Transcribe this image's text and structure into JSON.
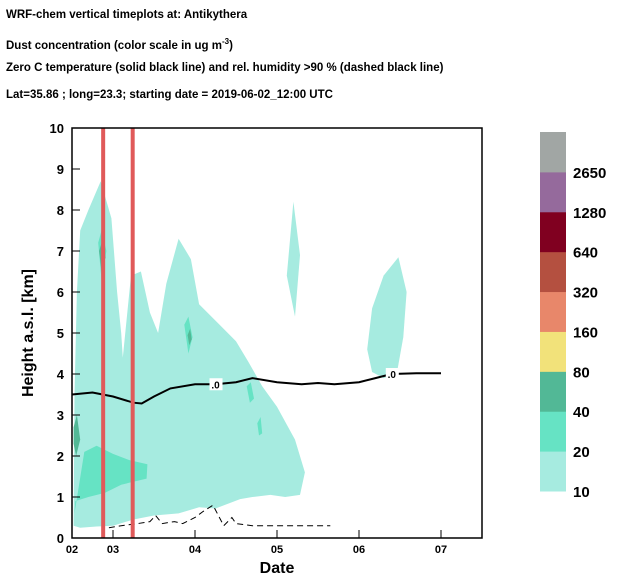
{
  "header": {
    "line1": "WRF-chem vertical timeplots at: Antikythera",
    "line2_prefix": "Dust concentration (color scale in ug m",
    "line2_sup": "-3",
    "line2_suffix": ")",
    "line3": "Zero C  temperature (solid black line) and  rel. humidity >90 % (dashed black line)",
    "line4": "Lat=35.86 ; long=23.3; starting date = 2019-06-02_12:00 UTC"
  },
  "chart_data": {
    "type": "heatmap",
    "xlabel": "Date",
    "ylabel": "Height a.s.l. [km]",
    "xlim": [
      0,
      5
    ],
    "ylim": [
      0,
      10
    ],
    "x_ticks": [
      {
        "x": 0,
        "label": "02"
      },
      {
        "x": 0.5,
        "label": "03"
      },
      {
        "x": 1.5,
        "label": "04"
      },
      {
        "x": 2.5,
        "label": "05"
      },
      {
        "x": 3.5,
        "label": "06"
      },
      {
        "x": 4.5,
        "label": "07"
      }
    ],
    "y_ticks": [
      0,
      1,
      2,
      3,
      4,
      5,
      6,
      7,
      8,
      9,
      10
    ],
    "colorbar": {
      "labels": [
        "10",
        "20",
        "40",
        "80",
        "160",
        "320",
        "640",
        "1280",
        "2650"
      ],
      "colors": [
        "#a6ebe0",
        "#66e3c4",
        "#52b896",
        "#f2e27a",
        "#e8876a",
        "#b45040",
        "#800020",
        "#956a9c",
        "#a1a6a4"
      ]
    },
    "vertical_markers": {
      "color": "#e05a5a",
      "x": [
        0.38,
        0.74
      ]
    },
    "zero_c_line": {
      "label": ".0",
      "points": [
        [
          0,
          3.5
        ],
        [
          0.25,
          3.55
        ],
        [
          0.5,
          3.45
        ],
        [
          0.75,
          3.3
        ],
        [
          0.85,
          3.28
        ],
        [
          1.0,
          3.45
        ],
        [
          1.2,
          3.65
        ],
        [
          1.5,
          3.75
        ],
        [
          1.75,
          3.75
        ],
        [
          2.0,
          3.8
        ],
        [
          2.2,
          3.9
        ],
        [
          2.5,
          3.8
        ],
        [
          2.8,
          3.75
        ],
        [
          3.0,
          3.78
        ],
        [
          3.2,
          3.75
        ],
        [
          3.5,
          3.8
        ],
        [
          3.7,
          3.9
        ],
        [
          3.9,
          4.0
        ],
        [
          4.2,
          4.02
        ],
        [
          4.5,
          4.02
        ]
      ]
    },
    "rh90_line": {
      "points": [
        [
          0.45,
          0.25
        ],
        [
          0.6,
          0.3
        ],
        [
          0.8,
          0.35
        ],
        [
          0.95,
          0.4
        ],
        [
          1.02,
          0.55
        ],
        [
          1.1,
          0.35
        ],
        [
          1.25,
          0.4
        ],
        [
          1.35,
          0.35
        ],
        [
          1.5,
          0.5
        ],
        [
          1.6,
          0.65
        ],
        [
          1.72,
          0.8
        ],
        [
          1.85,
          0.3
        ],
        [
          1.95,
          0.5
        ],
        [
          2.0,
          0.35
        ],
        [
          2.2,
          0.3
        ],
        [
          2.6,
          0.3
        ],
        [
          3.15,
          0.3
        ]
      ]
    },
    "dust_regions": [
      {
        "level": 0,
        "points": [
          [
            0.02,
            0.3
          ],
          [
            0.03,
            3.5
          ],
          [
            0.06,
            6.0
          ],
          [
            0.1,
            7.5
          ],
          [
            0.2,
            8.0
          ],
          [
            0.35,
            8.7
          ],
          [
            0.48,
            7.8
          ],
          [
            0.55,
            6.0
          ],
          [
            0.6,
            5.0
          ],
          [
            0.62,
            4.4
          ],
          [
            0.72,
            6.4
          ],
          [
            0.84,
            6.5
          ],
          [
            0.95,
            5.5
          ],
          [
            1.05,
            5.0
          ],
          [
            1.15,
            6.2
          ],
          [
            1.3,
            7.3
          ],
          [
            1.45,
            6.8
          ],
          [
            1.55,
            5.7
          ],
          [
            1.8,
            5.2
          ],
          [
            2.0,
            4.8
          ],
          [
            2.15,
            4.3
          ],
          [
            2.32,
            3.7
          ],
          [
            2.5,
            3.2
          ],
          [
            2.72,
            2.4
          ],
          [
            2.84,
            1.6
          ],
          [
            2.78,
            1.05
          ],
          [
            2.6,
            1.0
          ],
          [
            2.42,
            1.05
          ],
          [
            2.2,
            1.0
          ],
          [
            2.05,
            0.95
          ],
          [
            1.75,
            0.72
          ],
          [
            1.55,
            0.75
          ],
          [
            1.3,
            0.6
          ],
          [
            1.0,
            0.55
          ],
          [
            0.75,
            0.45
          ],
          [
            0.5,
            0.3
          ],
          [
            0.3,
            0.28
          ],
          [
            0.1,
            0.25
          ]
        ]
      },
      {
        "level": 0,
        "points": [
          [
            2.62,
            6.4
          ],
          [
            2.7,
            8.2
          ],
          [
            2.78,
            6.9
          ],
          [
            2.72,
            5.4
          ]
        ]
      },
      {
        "level": 0,
        "points": [
          [
            3.6,
            4.6
          ],
          [
            3.66,
            5.6
          ],
          [
            3.8,
            6.4
          ],
          [
            3.98,
            6.85
          ],
          [
            4.08,
            6.0
          ],
          [
            4.04,
            4.9
          ],
          [
            3.96,
            4.0
          ],
          [
            3.8,
            3.9
          ],
          [
            3.66,
            4.05
          ]
        ]
      },
      {
        "level": 1,
        "points": [
          [
            0.03,
            0.6
          ],
          [
            0.15,
            2.1
          ],
          [
            0.3,
            2.25
          ],
          [
            0.5,
            2.05
          ],
          [
            0.7,
            1.9
          ],
          [
            0.92,
            1.8
          ],
          [
            0.91,
            1.45
          ],
          [
            0.6,
            1.3
          ],
          [
            0.4,
            1.1
          ],
          [
            0.2,
            1.0
          ],
          [
            0.04,
            0.9
          ]
        ]
      },
      {
        "level": 1,
        "points": [
          [
            0.32,
            7.2
          ],
          [
            0.36,
            7.5
          ],
          [
            0.42,
            7.0
          ],
          [
            0.36,
            6.3
          ]
        ]
      },
      {
        "level": 1,
        "points": [
          [
            1.37,
            5.2
          ],
          [
            1.42,
            5.4
          ],
          [
            1.47,
            4.9
          ],
          [
            1.42,
            4.5
          ]
        ]
      },
      {
        "level": 1,
        "points": [
          [
            2.13,
            3.7
          ],
          [
            2.18,
            3.8
          ],
          [
            2.22,
            3.4
          ],
          [
            2.17,
            3.3
          ]
        ]
      },
      {
        "level": 1,
        "points": [
          [
            2.26,
            2.8
          ],
          [
            2.3,
            2.95
          ],
          [
            2.32,
            2.55
          ],
          [
            2.28,
            2.5
          ]
        ]
      },
      {
        "level": 2,
        "points": [
          [
            0.33,
            7.0
          ],
          [
            0.37,
            7.25
          ],
          [
            0.41,
            6.85
          ],
          [
            0.36,
            6.5
          ]
        ]
      },
      {
        "level": 2,
        "points": [
          [
            1.41,
            4.95
          ],
          [
            1.44,
            5.1
          ],
          [
            1.46,
            4.85
          ],
          [
            1.43,
            4.7
          ]
        ]
      },
      {
        "level": 2,
        "points": [
          [
            0.02,
            2.7
          ],
          [
            0.06,
            3.0
          ],
          [
            0.1,
            2.4
          ],
          [
            0.05,
            2.0
          ],
          [
            0.02,
            2.3
          ]
        ]
      }
    ]
  }
}
